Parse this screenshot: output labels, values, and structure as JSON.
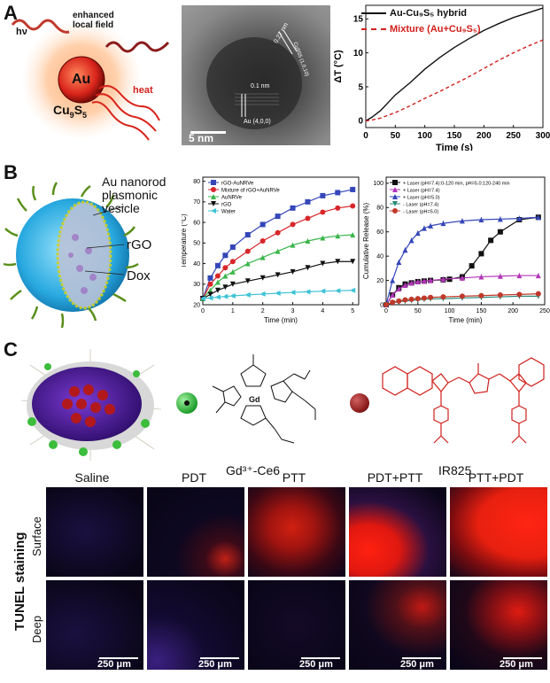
{
  "panelA": {
    "letter": "A",
    "schematic": {
      "hv": "hν",
      "field": "enhanced\nlocal field",
      "core": "Au",
      "shell": "Cu",
      "shell_sub1": "9",
      "shell_S": "S",
      "shell_sub2": "5",
      "heat": "heat"
    },
    "tem": {
      "d1": "0.27 nm",
      "d1b": "Cu9S5 (1,0,10)",
      "d2": "0.1 nm",
      "d2b": "Au (4,0,0)",
      "scale": "5 nm"
    },
    "legend": [
      "Au-Cu₉S₅ hybrid",
      "Mixture (Au+Cu₉S₅)"
    ]
  },
  "panelB": {
    "letter": "B",
    "schematic": {
      "vesicle": "Au nanorod\nplasmonic\nvesicle",
      "rgo": "rGO",
      "dox": "Dox"
    }
  },
  "panelC": {
    "letter": "C",
    "gd": "Gd³⁺-Ce6",
    "gd_atom": "Gd",
    "ir": "IR825",
    "tunel_title": "TUNEL staining",
    "columns": [
      "Saline",
      "PDT",
      "PTT",
      "PDT+PTT",
      "PTT+PDT"
    ],
    "rows": [
      "Surface",
      "Deep"
    ],
    "scale": "250 μm"
  },
  "chart_data": [
    {
      "id": "A3",
      "type": "line",
      "xlabel": "Time (s)",
      "ylabel": "ΔT (°C)",
      "xlim": [
        0,
        300
      ],
      "ylim": [
        -1,
        17
      ],
      "xticks": [
        0,
        50,
        100,
        150,
        200,
        250,
        300
      ],
      "yticks": [
        0,
        5,
        10,
        15
      ],
      "series": [
        {
          "name": "Au-Cu₉S₅ hybrid",
          "color": "#111111",
          "dash": "solid",
          "x": [
            0,
            10,
            25,
            50,
            75,
            100,
            125,
            150,
            175,
            200,
            225,
            250,
            275,
            300
          ],
          "y": [
            0,
            0.5,
            1.5,
            3.8,
            5.6,
            7.6,
            9.3,
            10.8,
            12.1,
            13.3,
            14.3,
            15.2,
            15.9,
            16.6
          ]
        },
        {
          "name": "Mixture (Au+Cu₉S₅)",
          "color": "#d0201c",
          "dash": "dash",
          "x": [
            0,
            10,
            25,
            50,
            75,
            100,
            125,
            150,
            175,
            200,
            225,
            250,
            275,
            300
          ],
          "y": [
            0,
            0.1,
            0.4,
            1.2,
            2.2,
            3.3,
            4.3,
            5.4,
            6.5,
            7.7,
            8.9,
            10.0,
            11.0,
            11.9
          ]
        }
      ]
    },
    {
      "id": "B2",
      "type": "line",
      "xlabel": "Time (min)",
      "ylabel": "Temperature (°C)",
      "xlim": [
        0,
        5.2
      ],
      "ylim": [
        20,
        82
      ],
      "xticks": [
        0,
        1,
        2,
        3,
        4,
        5
      ],
      "yticks": [
        20,
        30,
        40,
        50,
        60,
        70,
        80
      ],
      "series": [
        {
          "name": "rGO-AuNRVe",
          "color": "#3446b8",
          "marker": "square",
          "x": [
            0,
            0.25,
            0.5,
            0.75,
            1,
            1.5,
            2,
            2.5,
            3,
            3.5,
            4,
            4.5,
            5
          ],
          "y": [
            23,
            33,
            39,
            44,
            48,
            54,
            59,
            63,
            67,
            70,
            73,
            74.5,
            76
          ]
        },
        {
          "name": "Mixture of rGO+AuNRVe",
          "color": "#d8262a",
          "marker": "circle",
          "x": [
            0,
            0.25,
            0.5,
            0.75,
            1,
            1.5,
            2,
            2.5,
            3,
            3.5,
            4,
            4.5,
            5
          ],
          "y": [
            23,
            30,
            34,
            38,
            41,
            46,
            51,
            55,
            59,
            62,
            65,
            67,
            68
          ]
        },
        {
          "name": "AuNRVe",
          "color": "#3ab54a",
          "marker": "triangle",
          "x": [
            0,
            0.25,
            0.5,
            0.75,
            1,
            1.5,
            2,
            2.5,
            3,
            3.5,
            4,
            4.5,
            5
          ],
          "y": [
            23,
            27,
            31,
            34,
            36,
            40,
            43,
            46,
            49,
            51,
            52.5,
            53.5,
            54
          ]
        },
        {
          "name": "rGO",
          "color": "#111111",
          "marker": "triangle-down",
          "x": [
            0,
            0.25,
            0.5,
            0.75,
            1,
            1.5,
            2,
            2.5,
            3,
            3.5,
            4,
            4.5,
            5
          ],
          "y": [
            23,
            25,
            27,
            28.5,
            30,
            31.5,
            33,
            34.5,
            36,
            38,
            40,
            41,
            41
          ]
        },
        {
          "name": "Water",
          "color": "#3ec3d6",
          "marker": "triangle-left",
          "x": [
            0,
            0.25,
            0.5,
            0.75,
            1,
            1.5,
            2,
            2.5,
            3,
            3.5,
            4,
            4.5,
            5
          ],
          "y": [
            23,
            23.3,
            23.7,
            24,
            24.3,
            24.8,
            25.2,
            25.6,
            26,
            26.3,
            26.6,
            26.8,
            27
          ]
        }
      ]
    },
    {
      "id": "B3",
      "type": "line",
      "xlabel": "Time (min)",
      "ylabel": "Cumulative Release (%)",
      "xlim": [
        0,
        250
      ],
      "ylim": [
        0,
        105
      ],
      "xticks": [
        0,
        50,
        100,
        150,
        200,
        250
      ],
      "yticks": [
        0,
        20,
        40,
        60,
        80,
        100
      ],
      "series": [
        {
          "name": "+ Laser (pH=7.4):0-120 min, pH=5.0:120-240 min",
          "color": "#111111",
          "marker": "square",
          "x": [
            0,
            10,
            20,
            30,
            40,
            50,
            60,
            70,
            90,
            100,
            120,
            135,
            150,
            165,
            180,
            210,
            240
          ],
          "y": [
            0,
            8,
            14,
            17,
            18,
            19,
            19.5,
            20,
            20.5,
            21,
            23,
            32,
            42,
            53,
            60,
            70,
            72
          ]
        },
        {
          "name": "+ Laser (pH=7.4)",
          "color": "#b236b8",
          "marker": "triangle",
          "x": [
            0,
            10,
            20,
            30,
            40,
            50,
            60,
            70,
            90,
            120,
            150,
            180,
            210,
            240
          ],
          "y": [
            0,
            8,
            13,
            16,
            18,
            19,
            19.5,
            20,
            21,
            22,
            23,
            23.5,
            24,
            24
          ]
        },
        {
          "name": "+ Laser (pH=5.0)",
          "color": "#3446b8",
          "marker": "triangle",
          "x": [
            0,
            10,
            20,
            30,
            40,
            50,
            60,
            70,
            90,
            120,
            150,
            180,
            210,
            240
          ],
          "y": [
            0,
            20,
            35,
            45,
            53,
            59,
            63,
            65,
            67,
            69,
            70,
            70.5,
            71,
            72
          ]
        },
        {
          "name": "- Laser (pH=7.4)",
          "color": "#2a8b7a",
          "marker": "triangle-down",
          "x": [
            0,
            10,
            20,
            30,
            40,
            50,
            60,
            70,
            90,
            120,
            150,
            180,
            210,
            240
          ],
          "y": [
            0,
            1.5,
            2.5,
            3,
            3.5,
            4,
            4.5,
            4.8,
            5,
            5.5,
            6,
            6.5,
            7,
            7
          ]
        },
        {
          "name": "- Laser (pH=5.0)",
          "color": "#c0392b",
          "marker": "circle",
          "x": [
            0,
            10,
            20,
            30,
            40,
            50,
            60,
            70,
            90,
            120,
            150,
            180,
            210,
            240
          ],
          "y": [
            0,
            2,
            3,
            4,
            4.5,
            5,
            5.5,
            6,
            6.5,
            7,
            7.5,
            8,
            8.5,
            9
          ]
        }
      ]
    }
  ]
}
